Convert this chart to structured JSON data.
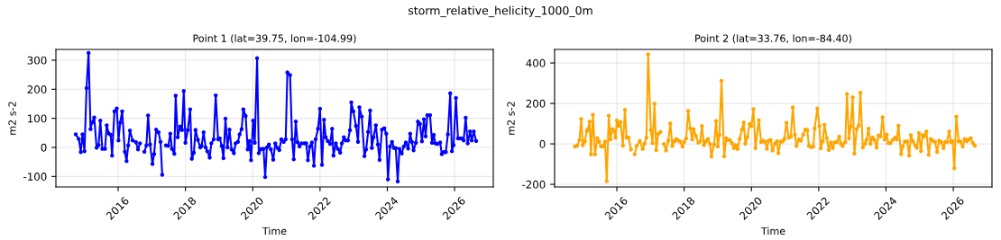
{
  "chart_data": [
    {
      "type": "line",
      "title": "Point 1 (lat=39.75, lon=-104.99)",
      "annotations": [
        "storm_relative_helicity_1000_0m"
      ],
      "xlabel": "Time",
      "ylabel": "m2 s-2",
      "grid": true,
      "marker": "circle",
      "line_style": "solid",
      "xlim": [
        2014.15,
        2027.15
      ],
      "xticks": [
        2016,
        2018,
        2020,
        2022,
        2024,
        2026
      ],
      "ylim": [
        -136,
        337
      ],
      "yticks": [
        -100,
        0,
        100,
        200,
        300
      ],
      "series": [
        {
          "color": "#0000ff",
          "x": [
            2014.74,
            2014.83,
            2014.89,
            2014.94,
            2015.0,
            2015.06,
            2015.12,
            2015.18,
            2015.22,
            2015.29,
            2015.36,
            2015.42,
            2015.47,
            2015.53,
            2015.61,
            2015.66,
            2015.72,
            2015.78,
            2015.82,
            2015.89,
            2015.96,
            2016.01,
            2016.06,
            2016.12,
            2016.2,
            2016.25,
            2016.3,
            2016.35,
            2016.43,
            2016.53,
            2016.59,
            2016.65,
            2016.72,
            2016.78,
            2016.84,
            2016.89,
            2016.95,
            2017.02,
            2017.07,
            2017.13,
            2017.2,
            2017.26,
            2017.31,
            2017.4,
            2017.42,
            2017.49,
            2017.55,
            2017.6,
            2017.67,
            2017.71,
            2017.77,
            2017.84,
            2017.9,
            2017.95,
            2018.0,
            2018.07,
            2018.14,
            2018.19,
            2018.25,
            2018.3,
            2018.37,
            2018.44,
            2018.48,
            2018.54,
            2018.6,
            2018.65,
            2018.72,
            2018.77,
            2018.84,
            2018.9,
            2018.97,
            2019.02,
            2019.08,
            2019.13,
            2019.19,
            2019.25,
            2019.31,
            2019.37,
            2019.44,
            2019.49,
            2019.56,
            2019.61,
            2019.67,
            2019.72,
            2019.79,
            2019.85,
            2019.9,
            2019.95,
            2020.01,
            2020.06,
            2020.13,
            2020.18,
            2020.26,
            2020.32,
            2020.37,
            2020.42,
            2020.48,
            2020.54,
            2020.61,
            2020.67,
            2020.74,
            2020.79,
            2020.85,
            2020.92,
            2020.98,
            2021.03,
            2021.11,
            2021.17,
            2021.22,
            2021.28,
            2021.33,
            2021.39,
            2021.45,
            2021.53,
            2021.59,
            2021.64,
            2021.7,
            2021.76,
            2021.82,
            2021.87,
            2021.94,
            2022.0,
            2022.06,
            2022.12,
            2022.17,
            2022.23,
            2022.3,
            2022.36,
            2022.4,
            2022.47,
            2022.53,
            2022.6,
            2022.65,
            2022.71,
            2022.76,
            2022.83,
            2022.89,
            2022.93,
            2022.99,
            2023.07,
            2023.13,
            2023.17,
            2023.24,
            2023.32,
            2023.37,
            2023.43,
            2023.49,
            2023.54,
            2023.59,
            2023.66,
            2023.72,
            2023.77,
            2023.84,
            2023.91,
            2023.97,
            2024.02,
            2024.08,
            2024.14,
            2024.2,
            2024.25,
            2024.31,
            2024.36,
            2024.43,
            2024.49,
            2024.55,
            2024.62,
            2024.68,
            2024.73,
            2024.78,
            2024.85,
            2024.91,
            2024.97,
            2025.03,
            2025.09,
            2025.14,
            2025.19,
            2025.27,
            2025.33,
            2025.38,
            2025.43,
            2025.49,
            2025.57,
            2025.62,
            2025.68,
            2025.74,
            2025.8,
            2025.87,
            2025.92,
            2025.97,
            2026.04,
            2026.1,
            2026.16,
            2026.21,
            2026.27,
            2026.33,
            2026.39,
            2026.46,
            2026.51,
            2026.57,
            2026.64
          ],
          "values": [
            45,
            29,
            -16,
            45,
            -13,
            204,
            325,
            63,
            85,
            103,
            -1,
            8,
            92,
            -5,
            -5,
            76,
            48,
            43,
            -28,
            124,
            134,
            24,
            85,
            124,
            -15,
            -47,
            7,
            58,
            24,
            18,
            -7,
            14,
            null,
            -15,
            7,
            110,
            10,
            -57,
            -23,
            61,
            52,
            19,
            -94,
            null,
            7,
            6,
            47,
            -5,
            -22,
            178,
            35,
            72,
            60,
            194,
            16,
            60,
            131,
            -39,
            -18,
            60,
            26,
            0,
            5,
            52,
            0,
            -13,
            -35,
            14,
            28,
            179,
            28,
            31,
            5,
            -37,
            99,
            0,
            61,
            -7,
            -20,
            14,
            19,
            45,
            63,
            131,
            108,
            -7,
            22,
            -44,
            92,
            16,
            307,
            -20,
            -5,
            -5,
            -102,
            0,
            10,
            -7,
            -42,
            14,
            -2,
            -9,
            28,
            19,
            28,
            258,
            249,
            28,
            -41,
            89,
            18,
            3,
            14,
            14,
            14,
            -44,
            3,
            17,
            -63,
            28,
            64,
            133,
            -60,
            95,
            35,
            22,
            12,
            64,
            -28,
            14,
            -5,
            -18,
            14,
            35,
            24,
            24,
            59,
            155,
            124,
            74,
            19,
            138,
            106,
            -30,
            -7,
            53,
            127,
            -2,
            35,
            76,
            10,
            -43,
            61,
            66,
            47,
            -110,
            3,
            19,
            -2,
            -2,
            -117,
            -5,
            -21,
            3,
            17,
            -4,
            47,
            19,
            -10,
            16,
            89,
            81,
            21,
            97,
            38,
            111,
            111,
            16,
            43,
            14,
            12,
            17,
            -23,
            -16,
            -16,
            45,
            186,
            -13,
            8,
            170,
            31,
            31,
            31,
            24,
            102,
            14,
            55,
            24,
            55,
            22
          ]
        }
      ]
    },
    {
      "type": "line",
      "title": "Point 2 (lat=33.76, lon=-84.40)",
      "xlabel": "Time",
      "ylabel": "m2 s-2",
      "grid": true,
      "marker": "circle",
      "line_style": "solid",
      "xlim": [
        2014.15,
        2027.15
      ],
      "xticks": [
        2016,
        2018,
        2020,
        2022,
        2024,
        2026
      ],
      "ylim": [
        -213,
        467
      ],
      "yticks": [
        -200,
        0,
        200,
        400
      ],
      "series": [
        {
          "color": "#ffa500",
          "x": [
            2014.75,
            2014.82,
            2014.89,
            2014.94,
            2014.99,
            2015.05,
            2015.11,
            2015.14,
            2015.19,
            2015.23,
            2015.29,
            2015.35,
            2015.42,
            2015.47,
            2015.53,
            2015.58,
            2015.65,
            2015.7,
            2015.76,
            2015.81,
            2015.87,
            2015.93,
            2015.96,
            2016.0,
            2016.05,
            2016.11,
            2016.18,
            2016.24,
            2016.29,
            2016.35,
            2016.42,
            2016.48,
            2016.53,
            2016.59,
            2016.68,
            2016.77,
            2016.82,
            2016.88,
            2016.93,
            2017.01,
            2017.06,
            2017.12,
            2017.17,
            2017.23,
            2017.3,
            2017.36,
            2017.4,
            2017.46,
            2017.53,
            2017.59,
            2017.65,
            2017.71,
            2017.77,
            2017.83,
            2017.88,
            2017.95,
            2018.0,
            2018.06,
            2018.12,
            2018.18,
            2018.24,
            2018.28,
            2018.35,
            2018.42,
            2018.48,
            2018.53,
            2018.59,
            2018.65,
            2018.71,
            2018.77,
            2018.81,
            2018.89,
            2018.95,
            2019.0,
            2019.05,
            2019.11,
            2019.19,
            2019.25,
            2019.3,
            2019.36,
            2019.42,
            2019.48,
            2019.53,
            2019.59,
            2019.65,
            2019.72,
            2019.77,
            2019.82,
            2019.88,
            2019.95,
            2020.0,
            2020.06,
            2020.12,
            2020.22,
            2020.29,
            2020.35,
            2020.41,
            2020.46,
            2020.51,
            2020.57,
            2020.63,
            2020.7,
            2020.76,
            2020.8,
            2020.87,
            2020.93,
            2020.98,
            2021.04,
            2021.11,
            2021.17,
            2021.23,
            2021.29,
            2021.34,
            2021.41,
            2021.47,
            2021.54,
            2021.6,
            2021.66,
            2021.71,
            2021.78,
            2021.84,
            2021.88,
            2021.96,
            2022.02,
            2022.06,
            2022.12,
            2022.17,
            2022.24,
            2022.3,
            2022.36,
            2022.42,
            2022.47,
            2022.54,
            2022.61,
            2022.66,
            2022.71,
            2022.79,
            2022.84,
            2022.9,
            2022.95,
            2023.01,
            2023.06,
            2023.13,
            2023.19,
            2023.24,
            2023.31,
            2023.38,
            2023.42,
            2023.48,
            2023.54,
            2023.6,
            2023.66,
            2023.72,
            2023.78,
            2023.84,
            2023.9,
            2023.96,
            2024.02,
            2024.07,
            2024.13,
            2024.2,
            2024.27,
            2024.32,
            2024.37,
            2024.45,
            2024.5,
            2024.56,
            2024.63,
            2024.69,
            2024.74,
            2024.8,
            2024.87,
            2024.92,
            2024.98,
            2025.04,
            2025.09,
            2025.13,
            2025.2,
            2025.27,
            2025.33,
            2025.39,
            2025.46,
            2025.52,
            2025.58,
            2025.64,
            2025.71,
            2025.76,
            2025.81,
            2025.88,
            2025.93,
            2025.98,
            2026.03,
            2026.09,
            2026.16,
            2026.21,
            2026.28,
            2026.34,
            2026.4,
            2026.46,
            2026.52,
            2026.58,
            2026.64
          ],
          "values": [
            -13,
            -9,
            19,
            123,
            -6,
            13,
            64,
            73,
            110,
            -52,
            144,
            -52,
            28,
            12,
            -13,
            -13,
            12,
            -184,
            139,
            22,
            73,
            61,
            31,
            116,
            88,
            108,
            -9,
            168,
            31,
            31,
            -28,
            null,
            -52,
            -10,
            15,
            -25,
            1,
            31,
            443,
            68,
            4,
            198,
            -31,
            49,
            59,
            null,
            -1,
            -33,
            16,
            101,
            -10,
            13,
            24,
            16,
            12,
            -13,
            9,
            27,
            163,
            77,
            22,
            73,
            39,
            6,
            13,
            88,
            -6,
            13,
            24,
            -1,
            -62,
            -3,
            113,
            -13,
            46,
            312,
            -62,
            28,
            19,
            19,
            4,
            -21,
            -6,
            -25,
            25,
            71,
            106,
            1,
            34,
            98,
            88,
            172,
            -21,
            117,
            9,
            16,
            9,
            -24,
            16,
            19,
            -33,
            1,
            13,
            -46,
            12,
            12,
            24,
            104,
            31,
            36,
            180,
            46,
            -10,
            22,
            16,
            46,
            71,
            68,
            -10,
            -16,
            -13,
            76,
            175,
            88,
            -22,
            13,
            95,
            28,
            -31,
            7,
            -21,
            7,
            9,
            36,
            1,
            -10,
            9,
            247,
            27,
            86,
            230,
            -48,
            74,
            91,
            253,
            -18,
            1,
            19,
            76,
            1,
            31,
            19,
            -18,
            42,
            37,
            132,
            22,
            46,
            4,
            4,
            19,
            31,
            22,
            90,
            -51,
            -13,
            12,
            12,
            -58,
            43,
            13,
            -7,
            -19,
            53,
            -36,
            43,
            37,
            61,
            -54,
            24,
            16,
            9,
            -40,
            16,
            9,
            -21,
            9,
            9,
            61,
            9,
            13,
            -120,
            135,
            13,
            12,
            -13,
            24,
            13,
            22,
            28,
            4,
            -9
          ]
        }
      ]
    }
  ]
}
